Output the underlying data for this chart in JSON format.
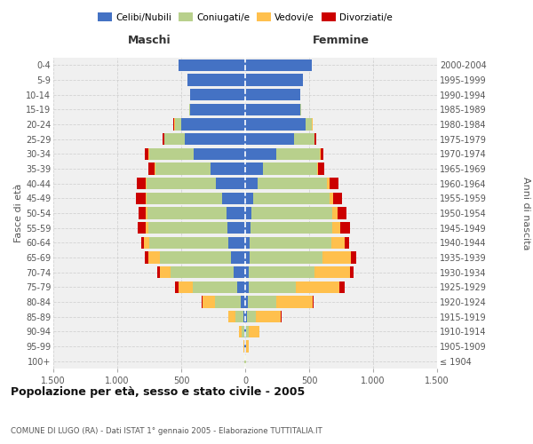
{
  "age_groups": [
    "100+",
    "95-99",
    "90-94",
    "85-89",
    "80-84",
    "75-79",
    "70-74",
    "65-69",
    "60-64",
    "55-59",
    "50-54",
    "45-49",
    "40-44",
    "35-39",
    "30-34",
    "25-29",
    "20-24",
    "15-19",
    "10-14",
    "5-9",
    "0-4"
  ],
  "birth_years": [
    "≤ 1904",
    "1905-1909",
    "1910-1914",
    "1915-1919",
    "1920-1924",
    "1925-1929",
    "1930-1934",
    "1935-1939",
    "1940-1944",
    "1945-1949",
    "1950-1954",
    "1955-1959",
    "1960-1964",
    "1965-1969",
    "1970-1974",
    "1975-1979",
    "1980-1984",
    "1985-1989",
    "1990-1994",
    "1995-1999",
    "2000-2004"
  ],
  "colors": {
    "celibi": "#4472c4",
    "coniugati": "#b8d08c",
    "vedovi": "#ffc04d",
    "divorziati": "#cc0000"
  },
  "males": {
    "celibi": [
      2,
      5,
      10,
      15,
      35,
      60,
      90,
      110,
      130,
      140,
      145,
      180,
      230,
      270,
      400,
      470,
      500,
      430,
      430,
      450,
      520
    ],
    "coniugati": [
      2,
      5,
      20,
      60,
      200,
      350,
      490,
      560,
      620,
      620,
      620,
      590,
      540,
      430,
      350,
      160,
      50,
      5,
      2,
      0,
      0
    ],
    "vedovi": [
      2,
      5,
      20,
      55,
      100,
      110,
      90,
      85,
      40,
      20,
      10,
      5,
      5,
      5,
      5,
      5,
      5,
      0,
      0,
      0,
      0
    ],
    "divorziati": [
      0,
      0,
      2,
      2,
      5,
      30,
      20,
      30,
      25,
      60,
      60,
      80,
      70,
      50,
      30,
      10,
      5,
      0,
      0,
      0,
      0
    ]
  },
  "females": {
    "celibi": [
      2,
      5,
      10,
      15,
      20,
      25,
      30,
      35,
      35,
      40,
      50,
      60,
      100,
      140,
      240,
      380,
      470,
      430,
      430,
      450,
      520
    ],
    "coniugati": [
      2,
      5,
      20,
      65,
      220,
      370,
      510,
      570,
      640,
      640,
      630,
      600,
      540,
      420,
      340,
      160,
      50,
      5,
      2,
      0,
      0
    ],
    "vedovi": [
      5,
      20,
      80,
      200,
      290,
      340,
      280,
      220,
      100,
      60,
      40,
      30,
      20,
      10,
      10,
      5,
      5,
      0,
      0,
      0,
      0
    ],
    "divorziati": [
      0,
      0,
      2,
      2,
      5,
      40,
      30,
      40,
      35,
      80,
      70,
      70,
      70,
      50,
      20,
      10,
      5,
      0,
      0,
      0,
      0
    ]
  },
  "xlim": 1500,
  "xtick_positions": [
    -1500,
    -1000,
    -500,
    0,
    500,
    1000,
    1500
  ],
  "xtick_labels": [
    "1.500",
    "1.000",
    "500",
    "0",
    "500",
    "1.000",
    "1.500"
  ],
  "title": "Popolazione per età, sesso e stato civile - 2005",
  "subtitle": "COMUNE DI LUGO (RA) - Dati ISTAT 1° gennaio 2005 - Elaborazione TUTTITALIA.IT",
  "ylabel_left": "Fasce di età",
  "ylabel_right": "Anni di nascita",
  "label_maschi": "Maschi",
  "label_femmine": "Femmine",
  "legend_labels": [
    "Celibi/Nubili",
    "Coniugati/e",
    "Vedovi/e",
    "Divorziati/e"
  ],
  "bg_color": "#f0f0f0",
  "grid_color": "#cccccc",
  "bar_height": 0.8
}
